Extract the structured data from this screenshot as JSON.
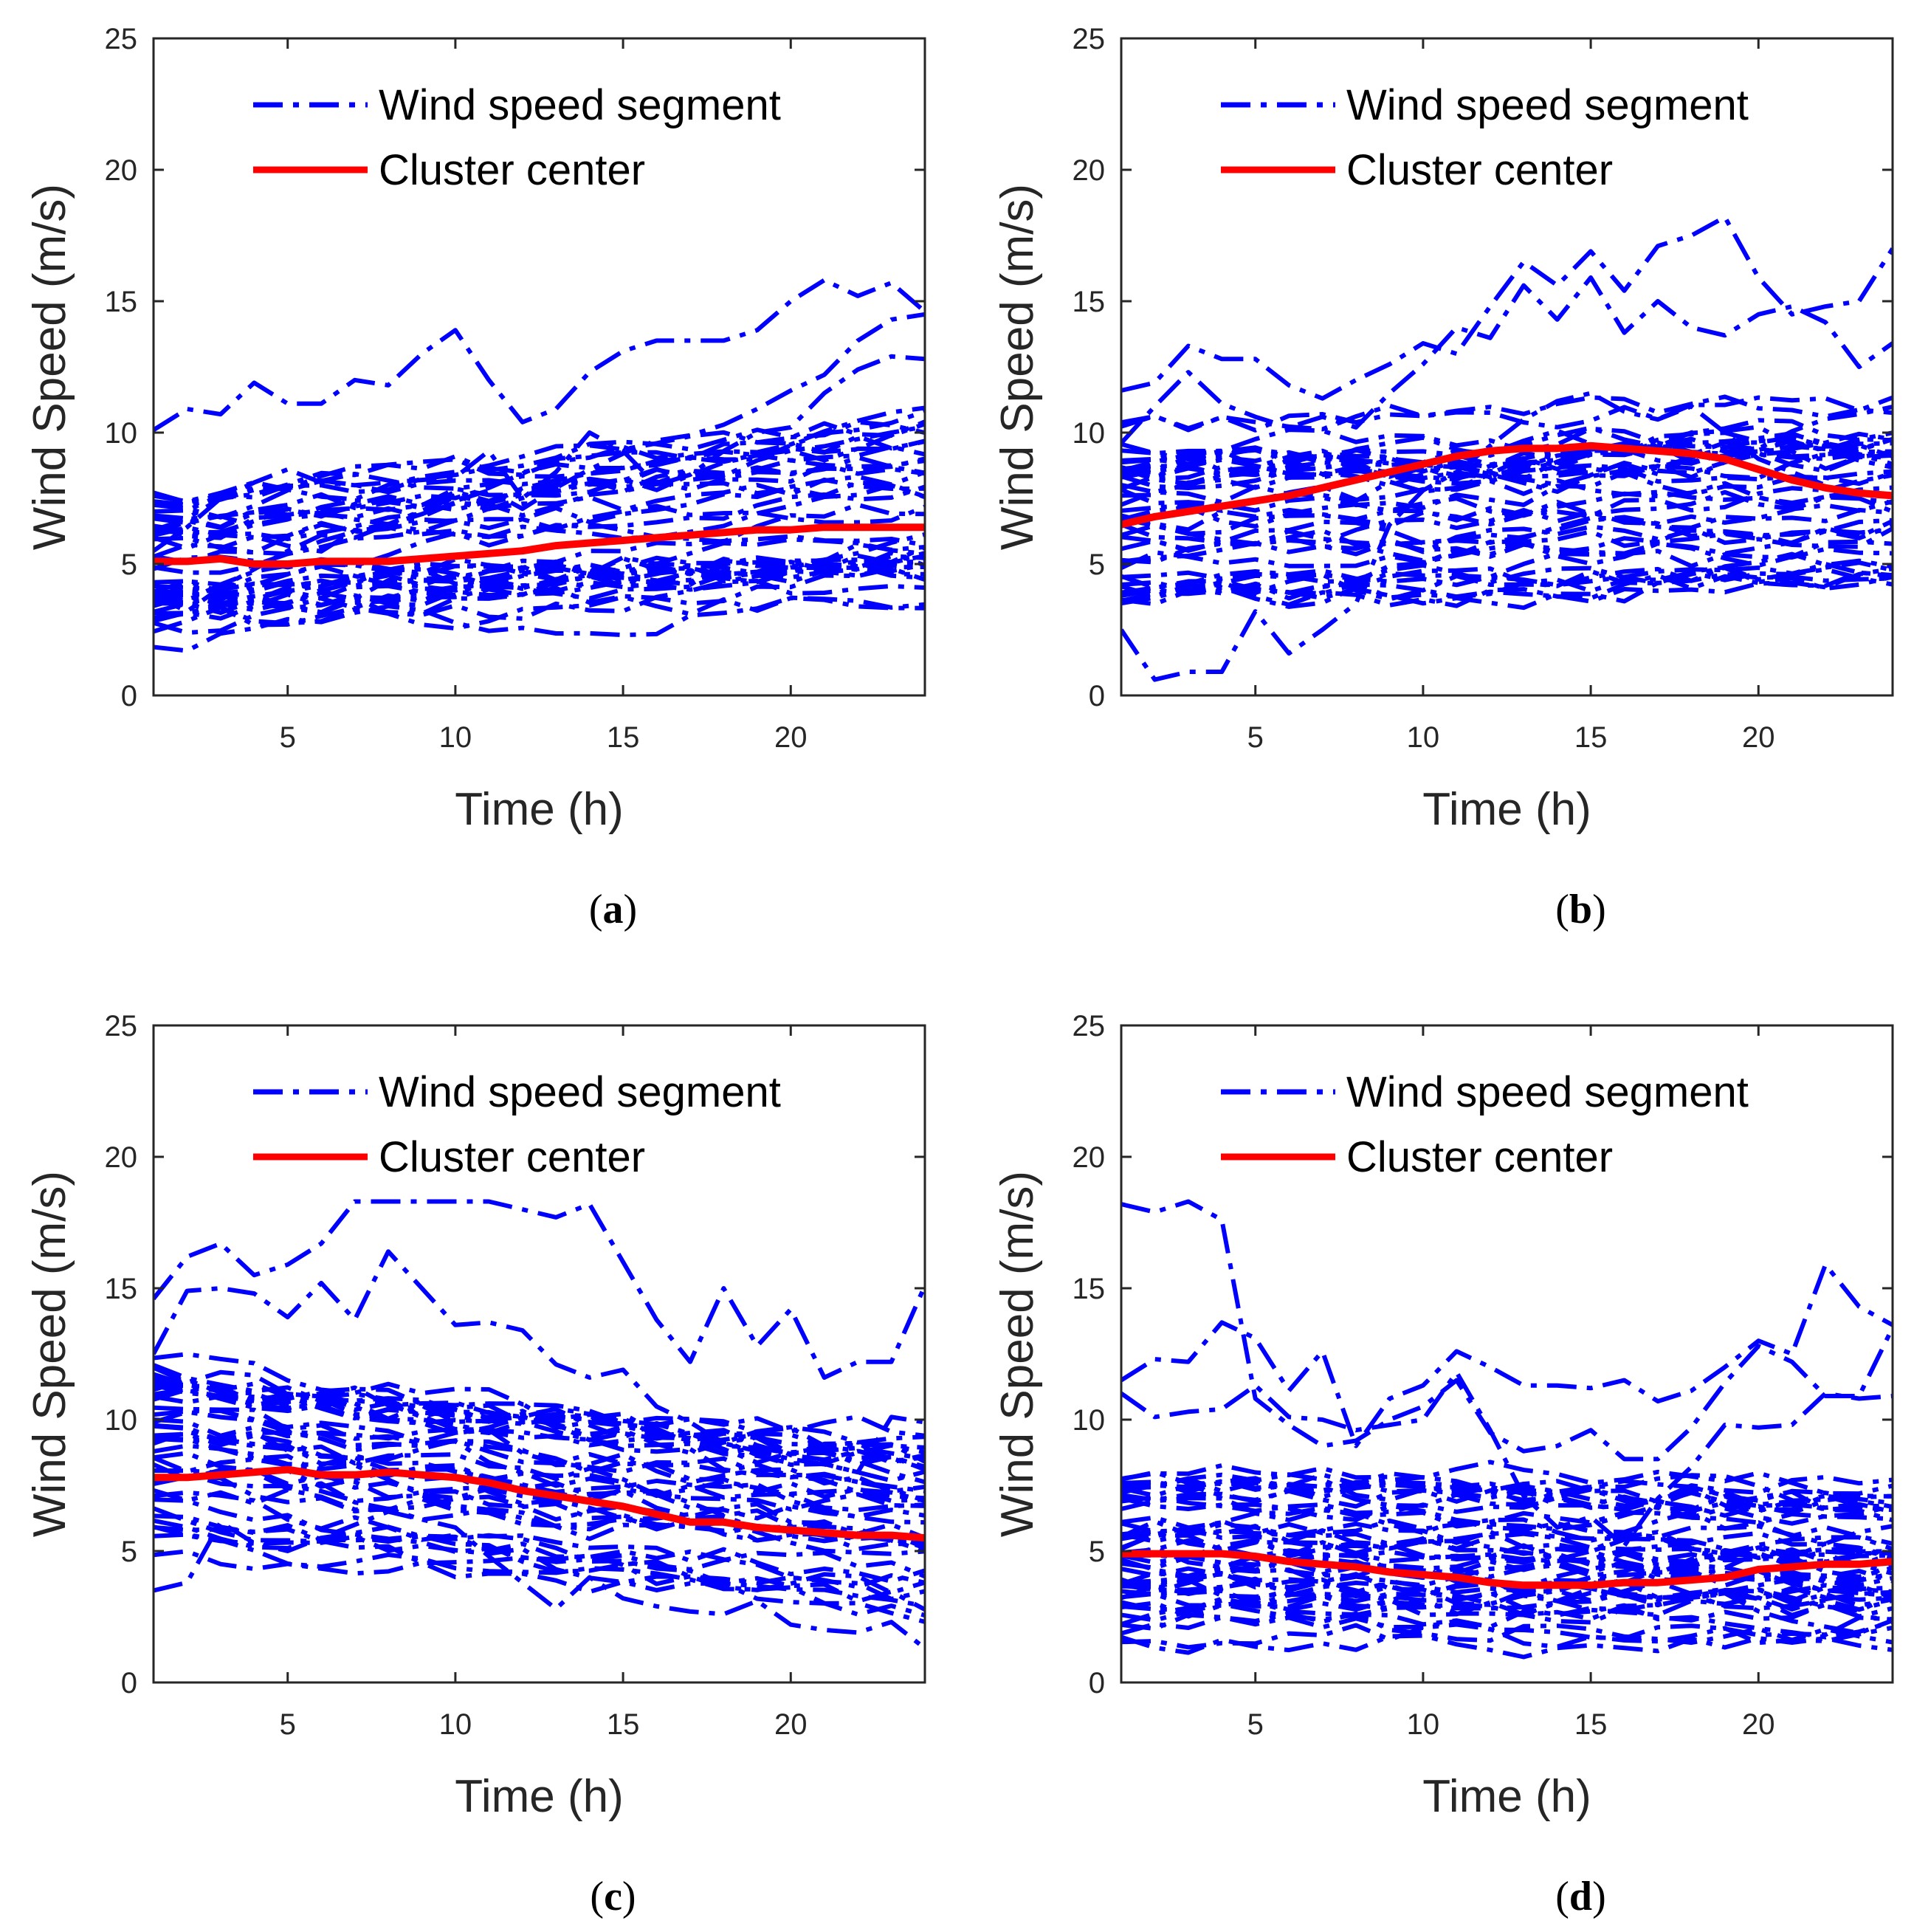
{
  "colors": {
    "segment": "#0000ff",
    "center": "#ff0000",
    "axis": "#262626",
    "background": "#ffffff"
  },
  "legend": {
    "segment_label": "Wind speed segment",
    "center_label": "Cluster center"
  },
  "chart_data": [
    {
      "type": "line",
      "panel": "a",
      "caption": {
        "letter": "a",
        "open": "(",
        "close": ")"
      },
      "xlabel": "Time (h)",
      "ylabel": "Wind Speed (m/s)",
      "xlim": [
        1,
        24
      ],
      "ylim": [
        0,
        25
      ],
      "xticks": [
        5,
        10,
        15,
        20
      ],
      "yticks": [
        0,
        5,
        10,
        15,
        20,
        25
      ],
      "legend_position": "top",
      "segment_band": {
        "low_start": 2.0,
        "low_end": 3.2,
        "high_start": 7.5,
        "high_end": 10.5,
        "count": 40,
        "seed": 11
      },
      "series": [
        {
          "name": "Wind speed segment",
          "style": "dash-dot",
          "values": [
            10.1,
            10.9,
            10.7,
            11.9,
            11.1,
            11.1,
            12.0,
            11.8,
            13.0,
            13.9,
            12.0,
            10.4,
            10.9,
            12.3,
            13.1,
            13.5,
            13.5,
            13.5,
            13.9,
            15.0,
            15.8,
            15.2,
            15.7,
            14.6
          ]
        },
        {
          "name": "Wind speed segment",
          "style": "dash-dot",
          "values": [
            3.8,
            3.2,
            4.1,
            4.8,
            5.5,
            6.1,
            6.0,
            6.5,
            6.9,
            7.4,
            7.8,
            7.1,
            7.9,
            8.6,
            9.2,
            9.7,
            9.9,
            10.3,
            10.9,
            11.6,
            12.2,
            13.5,
            14.3,
            14.5
          ]
        },
        {
          "name": "Wind speed segment",
          "style": "dash-dot",
          "values": [
            5.5,
            6.4,
            7.5,
            8.1,
            8.6,
            8.1,
            8.0,
            8.1,
            8.2,
            8.3,
            9.3,
            7.5,
            8.5,
            10.0,
            9.3,
            8.0,
            8.4,
            9.3,
            10.0,
            10.2,
            11.5,
            12.4,
            12.9,
            12.8
          ]
        },
        {
          "name": "Cluster center",
          "style": "solid",
          "values": [
            5.1,
            5.1,
            5.2,
            5.0,
            5.0,
            5.1,
            5.1,
            5.1,
            5.2,
            5.3,
            5.4,
            5.5,
            5.7,
            5.8,
            5.9,
            6.0,
            6.1,
            6.2,
            6.3,
            6.3,
            6.4,
            6.4,
            6.4,
            6.4
          ]
        }
      ]
    },
    {
      "type": "line",
      "panel": "b",
      "caption": {
        "letter": "b",
        "open": "(",
        "close": ")"
      },
      "xlabel": "Time (h)",
      "ylabel": "Wind Speed (m/s)",
      "xlim": [
        1,
        24
      ],
      "ylim": [
        0,
        25
      ],
      "xticks": [
        5,
        10,
        15,
        20
      ],
      "yticks": [
        0,
        5,
        10,
        15,
        20,
        25
      ],
      "legend_position": "top",
      "segment_band": {
        "low_start": 3.5,
        "low_end": 4.5,
        "high_start": 10.5,
        "high_end": 11.5,
        "count": 40,
        "seed": 23
      },
      "series": [
        {
          "name": "Wind speed segment",
          "style": "dash-dot",
          "values": [
            2.5,
            0.6,
            0.9,
            0.9,
            3.2,
            1.6,
            2.5,
            3.5,
            6.5,
            7.8,
            8.5,
            9.5,
            10.5,
            11.2,
            11.5,
            10.8,
            10.5,
            11.0,
            10.0,
            9.0,
            8.5,
            8.0,
            7.5,
            7.0
          ]
        },
        {
          "name": "Wind speed segment",
          "style": "dash-dot",
          "values": [
            11.6,
            11.9,
            13.3,
            12.8,
            12.8,
            11.8,
            11.3,
            12.0,
            12.6,
            13.4,
            13.0,
            14.8,
            16.5,
            15.6,
            16.9,
            15.4,
            17.1,
            17.5,
            18.2,
            15.9,
            14.5,
            14.8,
            15.0,
            17.0
          ]
        },
        {
          "name": "Wind speed segment",
          "style": "dash-dot",
          "values": [
            9.6,
            11.0,
            12.3,
            11.1,
            10.6,
            10.2,
            10.6,
            10.2,
            11.5,
            12.6,
            14.0,
            13.6,
            15.6,
            14.3,
            15.9,
            13.8,
            15.0,
            14.0,
            13.7,
            14.5,
            14.8,
            14.2,
            12.5,
            13.4
          ]
        },
        {
          "name": "Cluster center",
          "style": "solid",
          "values": [
            6.5,
            6.8,
            7.0,
            7.2,
            7.4,
            7.6,
            7.9,
            8.2,
            8.5,
            8.8,
            9.1,
            9.3,
            9.4,
            9.4,
            9.5,
            9.4,
            9.3,
            9.2,
            9.0,
            8.6,
            8.2,
            7.9,
            7.7,
            7.6
          ]
        }
      ]
    },
    {
      "type": "line",
      "panel": "c",
      "caption": {
        "letter": "c",
        "open": "(",
        "close": ")"
      },
      "xlabel": "Time (h)",
      "ylabel": "Wind Speed (m/s)",
      "xlim": [
        1,
        24
      ],
      "ylim": [
        0,
        25
      ],
      "xticks": [
        5,
        10,
        15,
        20
      ],
      "yticks": [
        0,
        5,
        10,
        15,
        20,
        25
      ],
      "legend_position": "top",
      "segment_band": {
        "low_start": 4.5,
        "low_end": 2.0,
        "high_start": 12.5,
        "high_end": 9.5,
        "count": 40,
        "seed": 37
      },
      "series": [
        {
          "name": "Wind speed segment",
          "style": "dash-dot",
          "values": [
            14.6,
            16.2,
            16.7,
            15.5,
            15.9,
            16.7,
            18.3,
            18.3,
            18.3,
            18.3,
            18.3,
            18.0,
            17.7,
            18.2,
            16.0,
            13.8,
            12.2,
            15.0,
            12.8,
            14.2,
            11.6,
            12.2,
            12.2,
            15.1
          ]
        },
        {
          "name": "Wind speed segment",
          "style": "dash-dot",
          "values": [
            3.5,
            3.8,
            6.1,
            5.3,
            5.0,
            5.5,
            6.0,
            6.5,
            6.2,
            5.9,
            4.8,
            3.8,
            2.8,
            4.0,
            3.2,
            2.9,
            2.7,
            2.6,
            3.1,
            2.2,
            2.0,
            1.9,
            2.3,
            1.3
          ]
        },
        {
          "name": "Wind speed segment",
          "style": "dash-dot",
          "values": [
            12.5,
            14.9,
            15.0,
            14.8,
            13.9,
            15.2,
            13.8,
            16.4,
            15.0,
            13.6,
            13.7,
            13.4,
            12.1,
            11.6,
            11.9,
            10.5,
            9.9,
            9.1,
            8.8,
            8.5,
            8.3,
            8.0,
            10.1,
            9.9
          ]
        },
        {
          "name": "Cluster center",
          "style": "solid",
          "values": [
            7.8,
            7.8,
            7.9,
            8.0,
            8.1,
            7.9,
            7.9,
            8.0,
            7.9,
            7.8,
            7.6,
            7.3,
            7.1,
            6.9,
            6.7,
            6.4,
            6.1,
            6.1,
            5.9,
            5.8,
            5.7,
            5.6,
            5.6,
            5.5
          ]
        }
      ]
    },
    {
      "type": "line",
      "panel": "d",
      "caption": {
        "letter": "d",
        "open": "(",
        "close": ")"
      },
      "xlabel": "Time (h)",
      "ylabel": "Wind Speed (m/s)",
      "xlim": [
        1,
        24
      ],
      "ylim": [
        0,
        25
      ],
      "xticks": [
        5,
        10,
        15,
        20
      ],
      "yticks": [
        0,
        5,
        10,
        15,
        20,
        25
      ],
      "legend_position": "top",
      "segment_band": {
        "low_start": 1.2,
        "low_end": 1.2,
        "high_start": 8.0,
        "high_end": 7.5,
        "count": 45,
        "seed": 53
      },
      "series": [
        {
          "name": "Wind speed segment",
          "style": "dash-dot",
          "values": [
            18.2,
            17.9,
            18.3,
            17.6,
            10.8,
            9.8,
            9.0,
            9.2,
            10.0,
            10.5,
            11.5,
            9.5,
            8.8,
            9.0,
            9.6,
            8.5,
            8.5,
            9.7,
            11.4,
            12.8,
            12.2,
            10.9,
            10.9,
            13.5
          ]
        },
        {
          "name": "Wind speed segment",
          "style": "dash-dot",
          "values": [
            11.5,
            12.3,
            12.2,
            13.7,
            13.1,
            11.1,
            12.6,
            9.0,
            10.8,
            11.3,
            12.6,
            12.0,
            11.3,
            11.3,
            11.2,
            11.5,
            10.7,
            11.1,
            12.0,
            13.0,
            12.5,
            15.9,
            14.3,
            13.6
          ]
        },
        {
          "name": "Wind speed segment",
          "style": "dash-dot",
          "values": [
            11.0,
            10.1,
            10.3,
            10.4,
            11.3,
            10.1,
            10.0,
            9.6,
            9.8,
            10.0,
            11.8,
            9.6,
            7.1,
            5.9,
            6.3,
            5.2,
            7.0,
            8.2,
            9.8,
            9.7,
            9.8,
            11.0,
            10.8,
            10.9
          ]
        },
        {
          "name": "Cluster center",
          "style": "solid",
          "values": [
            4.9,
            4.9,
            4.9,
            4.9,
            4.8,
            4.6,
            4.5,
            4.4,
            4.2,
            4.1,
            4.0,
            3.8,
            3.7,
            3.7,
            3.7,
            3.8,
            3.8,
            3.9,
            4.0,
            4.3,
            4.4,
            4.5,
            4.5,
            4.6
          ]
        }
      ]
    }
  ]
}
